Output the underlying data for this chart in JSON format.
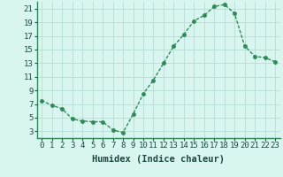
{
  "x": [
    0,
    1,
    2,
    3,
    4,
    5,
    6,
    7,
    8,
    9,
    10,
    11,
    12,
    13,
    14,
    15,
    16,
    17,
    18,
    19,
    20,
    21,
    22,
    23
  ],
  "y": [
    7.5,
    6.8,
    6.3,
    4.8,
    4.5,
    4.4,
    4.4,
    3.2,
    2.8,
    5.5,
    8.5,
    10.5,
    13.0,
    15.5,
    17.2,
    19.2,
    20.0,
    21.3,
    21.6,
    20.3,
    15.5,
    14.0,
    13.8,
    13.2
  ],
  "line_color": "#2e8b57",
  "marker": "o",
  "marker_size": 2.5,
  "bg_color": "#d8f5f0",
  "grid_color": "#b0d8d0",
  "xlabel": "Humidex (Indice chaleur)",
  "xlim": [
    -0.5,
    23.5
  ],
  "ylim": [
    2,
    22
  ],
  "xticks": [
    0,
    1,
    2,
    3,
    4,
    5,
    6,
    7,
    8,
    9,
    10,
    11,
    12,
    13,
    14,
    15,
    16,
    17,
    18,
    19,
    20,
    21,
    22,
    23
  ],
  "yticks": [
    3,
    5,
    7,
    9,
    11,
    13,
    15,
    17,
    19,
    21
  ],
  "tick_fontsize": 6.5,
  "xlabel_fontsize": 7.5,
  "line_width": 1.0
}
